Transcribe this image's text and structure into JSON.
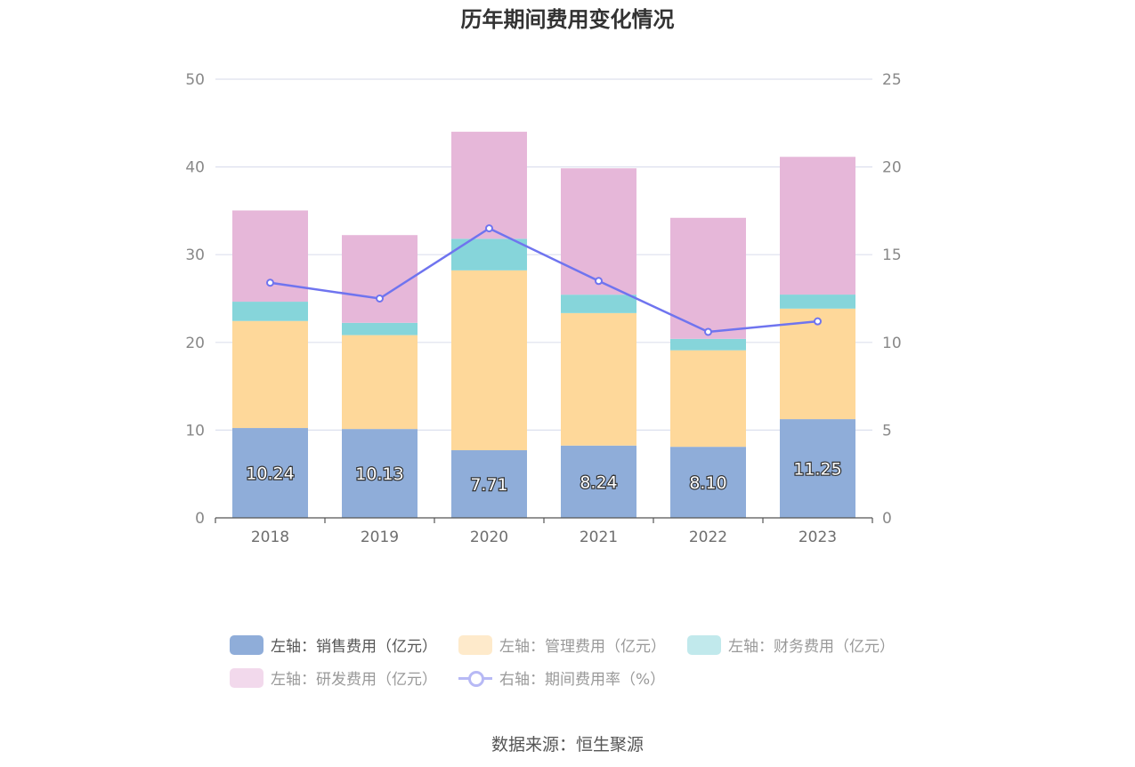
{
  "title": "历年期间费用变化情况",
  "source": "数据来源：恒生聚源",
  "colors": {
    "sales": "#8fadd9",
    "admin": "#fed89a",
    "finance": "#86d5da",
    "rd": "#e6b7d9",
    "rate": "#6f74ef",
    "grid": "#dde0ee",
    "axis": "#555555"
  },
  "legend": [
    {
      "label": "左轴：销售费用（亿元）",
      "color": "#8fadd9",
      "type": "bar",
      "active": true
    },
    {
      "label": "左轴：管理费用（亿元）",
      "color": "#feeacb",
      "type": "bar",
      "active": false
    },
    {
      "label": "左轴：财务费用（亿元）",
      "color": "#c1e9ec",
      "type": "bar",
      "active": false
    },
    {
      "label": "左轴：研发费用（亿元）",
      "color": "#f2d9ec",
      "type": "bar",
      "active": false
    },
    {
      "label": "右轴：期间费用率（%）",
      "color": "#b7b9f5",
      "type": "line",
      "active": false
    }
  ],
  "chart_data": {
    "type": "bar",
    "stacked": true,
    "title": "历年期间费用变化情况",
    "categories": [
      "2018",
      "2019",
      "2020",
      "2021",
      "2022",
      "2023"
    ],
    "left_axis": {
      "ylim": [
        0,
        50
      ],
      "ticks": [
        "0",
        "10",
        "20",
        "30",
        "40",
        "50"
      ]
    },
    "right_axis": {
      "ylim": [
        0,
        25
      ],
      "ticks": [
        "0",
        "5",
        "10",
        "15",
        "20",
        "25"
      ]
    },
    "grid": true,
    "legend_position": "bottom",
    "series": [
      {
        "name": "左轴：销售费用（亿元）",
        "axis": "left",
        "type": "bar",
        "values": [
          10.24,
          10.13,
          7.71,
          8.24,
          8.1,
          11.25
        ],
        "labels": [
          "10.24",
          "10.13",
          "7.71",
          "8.24",
          "8.10",
          "11.25"
        ]
      },
      {
        "name": "左轴：管理费用（亿元）",
        "axis": "left",
        "type": "bar",
        "values": [
          12.2,
          10.7,
          20.5,
          15.1,
          11.0,
          12.6
        ]
      },
      {
        "name": "左轴：财务费用（亿元）",
        "axis": "left",
        "type": "bar",
        "values": [
          2.2,
          1.4,
          3.6,
          2.1,
          1.3,
          1.6
        ]
      },
      {
        "name": "左轴：研发费用（亿元）",
        "axis": "left",
        "type": "bar",
        "values": [
          10.4,
          10.0,
          12.2,
          14.4,
          13.8,
          15.7
        ]
      },
      {
        "name": "右轴：期间费用率（%）",
        "axis": "right",
        "type": "line",
        "values": [
          13.4,
          12.5,
          16.5,
          13.5,
          10.6,
          11.2
        ]
      }
    ]
  }
}
